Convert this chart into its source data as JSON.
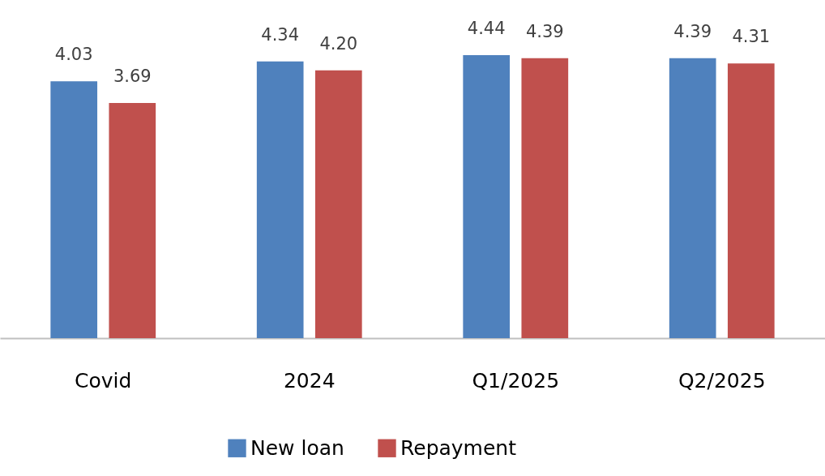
{
  "chart_data": {
    "type": "bar",
    "categories": [
      "Covid",
      "2024",
      "Q1/2025",
      "Q2/2025"
    ],
    "series": [
      {
        "name": "New loan",
        "color": "#4f81bd",
        "values": [
          4.03,
          4.34,
          4.44,
          4.39
        ],
        "value_labels": [
          "4.03",
          "4.34",
          "4.44",
          "4.39"
        ]
      },
      {
        "name": "Repayment",
        "color": "#c0504d",
        "values": [
          3.69,
          4.2,
          4.39,
          4.31
        ],
        "value_labels": [
          "3.69",
          "4.20",
          "4.39",
          "4.31"
        ]
      }
    ],
    "legend": "bottom"
  }
}
